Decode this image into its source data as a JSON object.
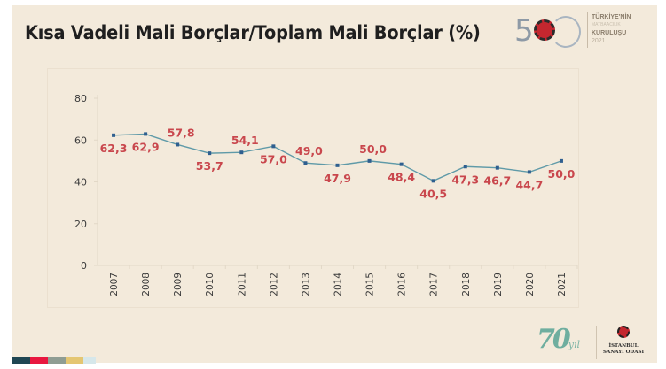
{
  "slide": {
    "title": "Kısa Vadeli Mali Borçlar/Toplam Mali Borçlar (%)",
    "logo_top": {
      "number": "5",
      "line1": "TÜRKİYE'NİN",
      "line2": "MATBAACILIK",
      "line3": "KURULUŞU",
      "year": "2021"
    },
    "logo_bottom": {
      "number": "70",
      "suffix": "yıl",
      "org_line1": "İSTANBUL",
      "org_line2": "SANAYİ ODASI"
    },
    "stripe_colors": [
      "#1f4653",
      "#e8173f",
      "#8f9d93",
      "#e4c672",
      "#d6e7ea"
    ]
  },
  "colors": {
    "line": "#5f9aa8",
    "marker": "#2f5f8f",
    "data_label": "#c9474d",
    "axis_text": "#3a3a3a",
    "grid_axis": "#e2d8c7"
  },
  "chart_data": {
    "type": "line",
    "title": "Kısa Vadeli Mali Borçlar/Toplam Mali Borçlar (%)",
    "xlabel": "",
    "ylabel": "",
    "categories": [
      "2007",
      "2008",
      "2009",
      "2010",
      "2011",
      "2012",
      "2013",
      "2014",
      "2015",
      "2016",
      "2017",
      "2018",
      "2019",
      "2020",
      "2021"
    ],
    "series": [
      {
        "name": "Kısa Vadeli Mali Borçlar/Toplam Mali Borçlar",
        "values": [
          62.3,
          62.9,
          57.8,
          53.7,
          54.1,
          57.0,
          49.0,
          47.9,
          50.0,
          48.4,
          40.5,
          47.3,
          46.7,
          44.7,
          50.0
        ],
        "labels": [
          "62,3",
          "62,9",
          "57,8",
          "53,7",
          "54,1",
          "57,0",
          "49,0",
          "47,9",
          "50,0",
          "48,4",
          "40,5",
          "47,3",
          "46,7",
          "44,7",
          "50,0"
        ],
        "label_positions": [
          "below",
          "below",
          "above",
          "below",
          "above",
          "below",
          "above",
          "below",
          "above",
          "below",
          "below",
          "below",
          "below",
          "below",
          "below"
        ]
      }
    ],
    "ylim": [
      0,
      80
    ],
    "yticks": [
      0,
      20,
      40,
      60,
      80
    ],
    "ytick_labels": [
      "0",
      "20",
      "40",
      "60",
      "80"
    ],
    "grid": false,
    "legend": "none"
  }
}
